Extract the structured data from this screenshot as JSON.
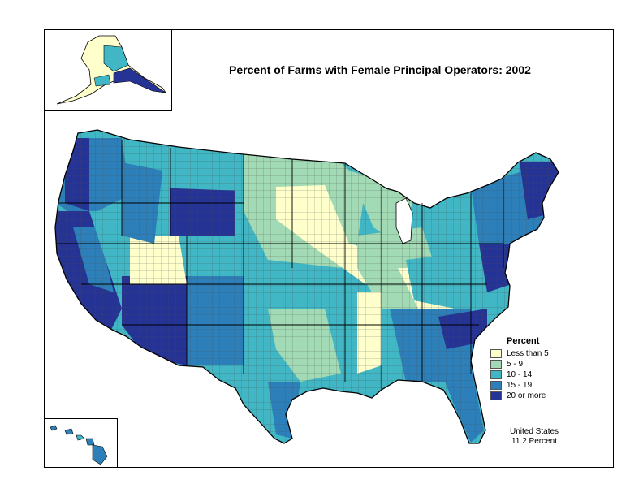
{
  "title": "Percent of Farms with Female Principal Operators:  2002",
  "legend": {
    "title": "Percent",
    "items": [
      {
        "label": "Less than 5",
        "color": "#ffffcc"
      },
      {
        "label": "5 - 9",
        "color": "#a1dab4"
      },
      {
        "label": "10 - 14",
        "color": "#41b6c4"
      },
      {
        "label": "15 - 19",
        "color": "#2c7fb8"
      },
      {
        "label": "20 or more",
        "color": "#253494"
      }
    ]
  },
  "summary": {
    "line1": "United States",
    "line2": "11.2 Percent"
  },
  "colors": {
    "border": "#000000",
    "county_line": "#555555",
    "low": "#ffffcc",
    "mid_low": "#a1dab4",
    "mid": "#41b6c4",
    "mid_high": "#2c7fb8",
    "high": "#253494"
  }
}
